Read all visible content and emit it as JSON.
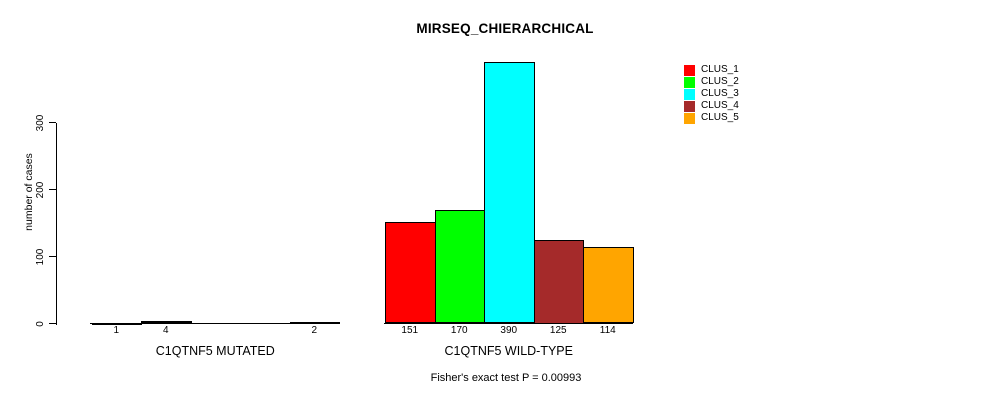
{
  "chart_data": {
    "type": "bar",
    "title": "MIRSEQ_CHIERARCHICAL",
    "ylabel": "number of cases",
    "ylim": [
      0,
      395
    ],
    "yticks": [
      0,
      100,
      200,
      300
    ],
    "grid": false,
    "legend_position": "top-right",
    "categories": [
      "C1QTNF5 MUTATED",
      "C1QTNF5 WILD-TYPE"
    ],
    "series": [
      {
        "name": "CLUS_1",
        "color": "#FF0000",
        "values": [
          1,
          151
        ]
      },
      {
        "name": "CLUS_2",
        "color": "#00FF00",
        "values": [
          4,
          170
        ]
      },
      {
        "name": "CLUS_3",
        "color": "#00FFFF",
        "values": [
          0,
          390
        ]
      },
      {
        "name": "CLUS_4",
        "color": "#A52A2A",
        "values": [
          0,
          125
        ]
      },
      {
        "name": "CLUS_5",
        "color": "#FFA500",
        "values": [
          2,
          114
        ]
      }
    ],
    "bar_value_labels": [
      [
        "1",
        "4",
        "",
        "",
        "2"
      ],
      [
        "151",
        "170",
        "390",
        "125",
        "114"
      ]
    ],
    "annotation": "Fisher's exact test P = 0.00993"
  }
}
